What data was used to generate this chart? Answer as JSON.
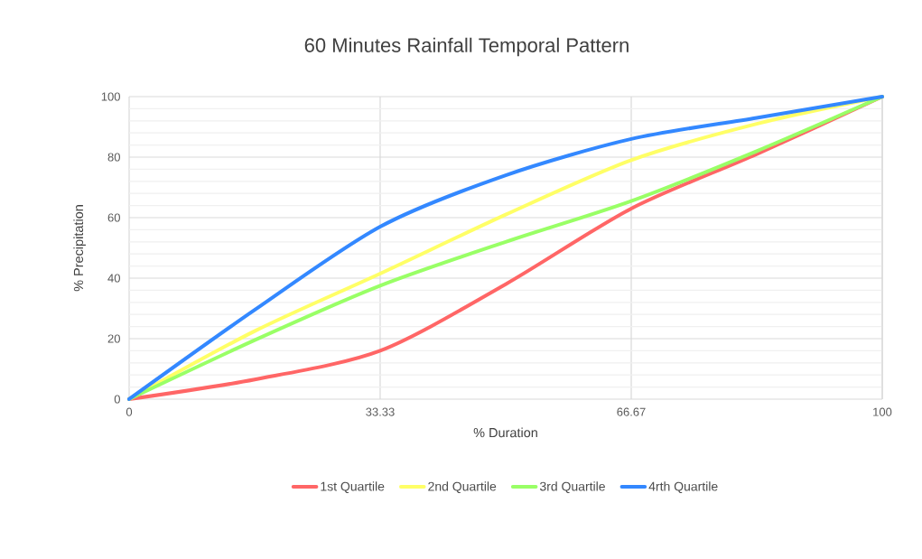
{
  "chart_data": {
    "type": "line",
    "title": "60 Minutes Rainfall Temporal Pattern",
    "xlabel": "% Duration",
    "ylabel": "% Precipitation",
    "x": [
      0,
      16.67,
      33.33,
      50,
      66.67,
      83.33,
      100
    ],
    "series": [
      {
        "name": "1st Quartile",
        "color": "#ff6666",
        "values": [
          0,
          6.5,
          16,
          38,
          63,
          81,
          100
        ]
      },
      {
        "name": "2nd Quartile",
        "color": "#ffff66",
        "values": [
          0,
          22.5,
          41.5,
          61,
          79,
          91,
          100
        ]
      },
      {
        "name": "3rd Quartile",
        "color": "#99ff66",
        "values": [
          0,
          19.5,
          37.5,
          52,
          65.5,
          82,
          100
        ]
      },
      {
        "name": "4rth Quartile",
        "color": "#3388ff",
        "values": [
          0,
          29.5,
          57,
          74,
          86,
          93,
          100
        ]
      }
    ],
    "xlim": [
      0,
      100
    ],
    "xticks": [
      0,
      33.33,
      66.67,
      100
    ],
    "ylim": [
      0,
      100
    ],
    "yticks": [
      0,
      20,
      40,
      60,
      80,
      100
    ],
    "grid": true,
    "legend": "bottom",
    "marker": "none",
    "line_style": "solid"
  }
}
